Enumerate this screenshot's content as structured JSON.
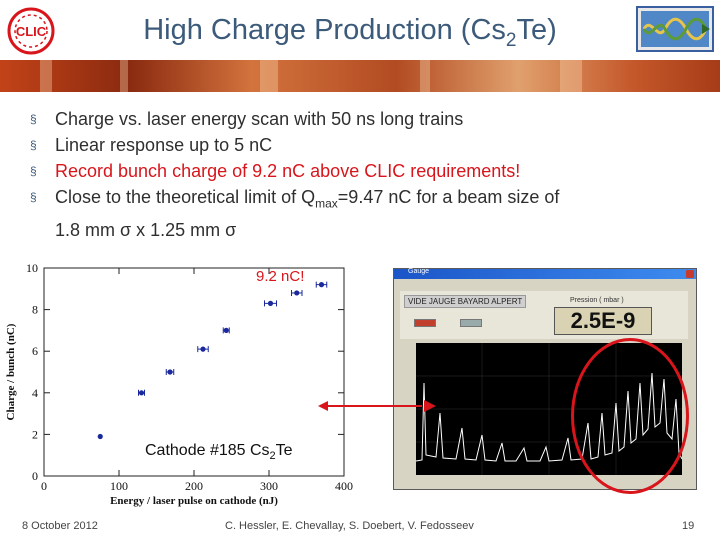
{
  "header": {
    "title_main": "High Charge Production (Cs",
    "title_sub": "2",
    "title_end": "Te)",
    "left_logo_text": "CLIC",
    "left_logo_icon": "clic-logo-icon",
    "right_logo_icon": "accelerator-logo-icon",
    "banner_colors": [
      "#c24318",
      "#8a2a10",
      "#d3733d",
      "#e0a06d"
    ]
  },
  "bullets": [
    {
      "text": "Charge vs. laser energy scan with 50 ns long trains",
      "color": "#2f2f2f"
    },
    {
      "text": "Linear response up to 5 nC",
      "color": "#2f2f2f"
    },
    {
      "text": "Record bunch charge of 9.2 nC above CLIC requirements!",
      "color": "#d8151b"
    },
    {
      "text_a": "Close to the theoretical limit of Q",
      "text_sub": "max",
      "text_b": "=9.47 nC for a beam size of",
      "text_line2": "1.8 mm σ x 1.25 mm σ",
      "color": "#2f2f2f"
    }
  ],
  "bullet_marker": "§",
  "annotation_label": "9.2 nC!",
  "cathode_label_main": "Cathode #185 Cs",
  "cathode_label_sub": "2",
  "cathode_label_end": "Te",
  "gauge_window": {
    "title": "Gauge",
    "gauge_label": "VIDE JAUGE BAYARD ALPERT",
    "pressure_caption": "Pression ( mbar )",
    "pressure_value": "2.5E-9"
  },
  "chart_data": {
    "type": "scatter",
    "xlabel": "Energy / laser pulse on cathode (nJ)",
    "ylabel": "Charge / bunch (nC)",
    "xlim": [
      0,
      400
    ],
    "ylim": [
      0,
      10
    ],
    "xticks": [
      0,
      100,
      200,
      300,
      400
    ],
    "yticks": [
      0,
      2,
      4,
      6,
      8,
      10
    ],
    "series": [
      {
        "points": [
          {
            "x": 75,
            "y": 1.9,
            "xerr": 0
          },
          {
            "x": 130,
            "y": 4.0,
            "xerr": 4
          },
          {
            "x": 168,
            "y": 5.0,
            "xerr": 5
          },
          {
            "x": 212,
            "y": 6.1,
            "xerr": 7
          },
          {
            "x": 243,
            "y": 7.0,
            "xerr": 4
          },
          {
            "x": 302,
            "y": 8.3,
            "xerr": 8
          },
          {
            "x": 337,
            "y": 8.8,
            "xerr": 7
          },
          {
            "x": 370,
            "y": 9.2,
            "xerr": 7
          }
        ],
        "color": "#1a2a9c"
      }
    ],
    "grid": false
  },
  "footer": {
    "date": "8 October 2012",
    "authors": "C. Hessler, E. Chevallay, S. Doebert, V. Fedosseev",
    "page": "19"
  },
  "colors": {
    "title": "#3c5a7a",
    "highlight": "#d8151b",
    "marker": "#1a2a9c"
  }
}
